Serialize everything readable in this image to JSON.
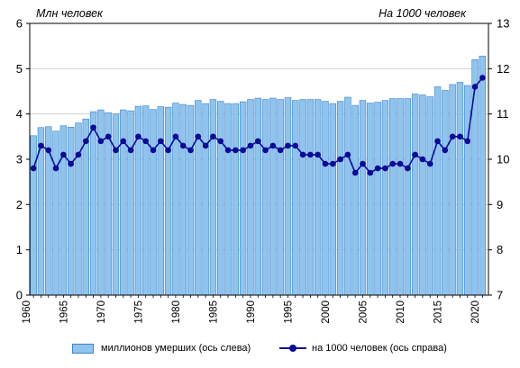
{
  "chart_data": {
    "type": "bar+line",
    "left_unit_label": "Млн  человек",
    "right_unit_label": "На 1000 человек",
    "left_ticks": [
      "0",
      "1",
      "2",
      "3",
      "4",
      "5",
      "6"
    ],
    "right_ticks": [
      "7",
      "8",
      "9",
      "10",
      "11",
      "12",
      "13"
    ],
    "x_ticks": [
      "1960",
      "1965",
      "1970",
      "1975",
      "1980",
      "1985",
      "1990",
      "1995",
      "2000",
      "2005",
      "2010",
      "2015",
      "2020"
    ],
    "left_axis": {
      "range": [
        0,
        6
      ]
    },
    "right_axis": {
      "range": [
        7,
        13
      ]
    },
    "x": [
      1961,
      1962,
      1963,
      1964,
      1965,
      1966,
      1967,
      1968,
      1969,
      1970,
      1971,
      1972,
      1973,
      1974,
      1975,
      1976,
      1977,
      1978,
      1979,
      1980,
      1981,
      1982,
      1983,
      1984,
      1985,
      1986,
      1987,
      1988,
      1989,
      1990,
      1991,
      1992,
      1993,
      1994,
      1995,
      1996,
      1997,
      1998,
      1999,
      2000,
      2001,
      2002,
      2003,
      2004,
      2005,
      2006,
      2007,
      2008,
      2009,
      2010,
      2011,
      2012,
      2013,
      2014,
      2015,
      2016,
      2017,
      2018,
      2019,
      2020,
      2021
    ],
    "series": [
      {
        "name": "миллионов  умерших (ось слева)",
        "type": "bar",
        "axis": "left",
        "color": "#8fc4ef",
        "edge_color": "#3f83c9",
        "values": [
          3.52,
          3.7,
          3.72,
          3.62,
          3.74,
          3.71,
          3.8,
          3.89,
          4.05,
          4.09,
          4.03,
          4.0,
          4.09,
          4.07,
          4.17,
          4.18,
          4.1,
          4.16,
          4.15,
          4.24,
          4.21,
          4.19,
          4.3,
          4.23,
          4.32,
          4.28,
          4.23,
          4.23,
          4.27,
          4.32,
          4.35,
          4.32,
          4.35,
          4.32,
          4.36,
          4.3,
          4.32,
          4.32,
          4.32,
          4.28,
          4.23,
          4.28,
          4.37,
          4.19,
          4.3,
          4.24,
          4.26,
          4.3,
          4.34,
          4.34,
          4.34,
          4.44,
          4.42,
          4.38,
          4.6,
          4.52,
          4.65,
          4.7,
          4.63,
          5.2,
          5.28
        ]
      },
      {
        "name": "на 1000  человек (ось справа)",
        "type": "line",
        "axis": "right",
        "color": "#0b0b9a",
        "values": [
          9.8,
          10.3,
          10.2,
          9.8,
          10.1,
          9.9,
          10.1,
          10.4,
          10.7,
          10.4,
          10.5,
          10.2,
          10.4,
          10.2,
          10.5,
          10.4,
          10.2,
          10.4,
          10.2,
          10.5,
          10.3,
          10.2,
          10.5,
          10.3,
          10.5,
          10.4,
          10.2,
          10.2,
          10.2,
          10.3,
          10.4,
          10.2,
          10.3,
          10.2,
          10.3,
          10.3,
          10.1,
          10.1,
          10.1,
          9.9,
          9.9,
          10.0,
          10.1,
          9.7,
          9.9,
          9.7,
          9.8,
          9.8,
          9.9,
          9.9,
          9.8,
          10.1,
          10.0,
          9.9,
          10.4,
          10.2,
          10.5,
          10.5,
          10.4,
          11.6,
          11.8
        ]
      }
    ]
  }
}
